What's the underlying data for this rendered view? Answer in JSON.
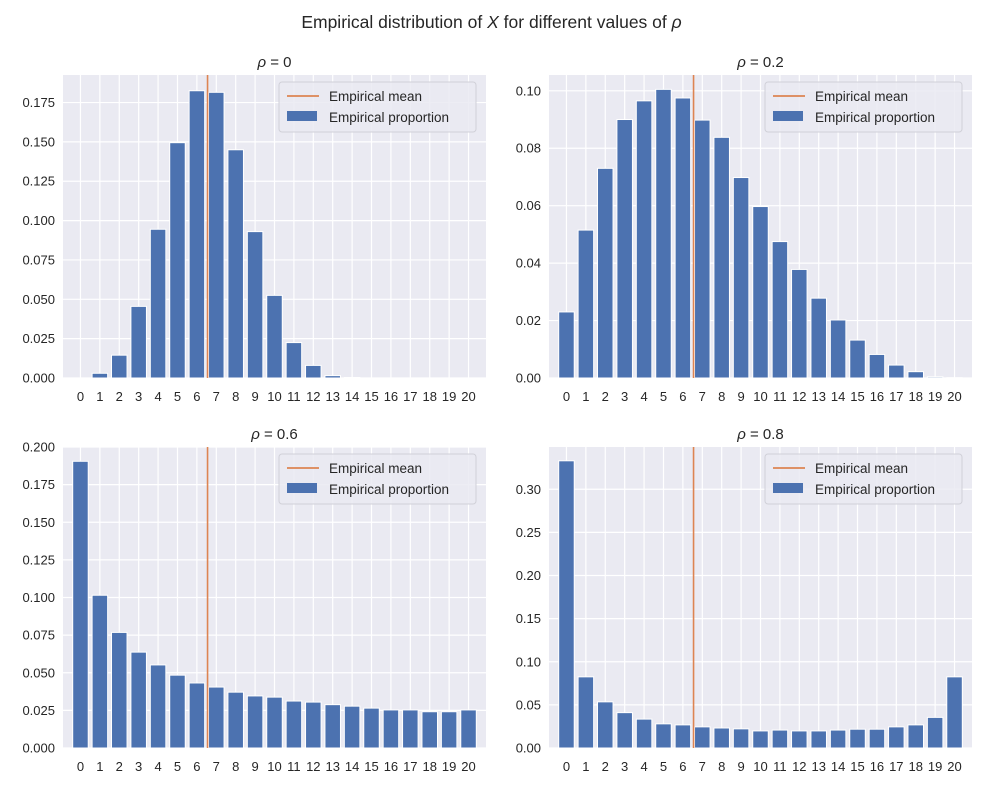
{
  "figure": {
    "title_prefix": "Empirical distribution of ",
    "title_var": "X",
    "title_middle": " for different values of ",
    "title_greek": "ρ"
  },
  "colors": {
    "bar": "#4c72b0",
    "mean_line": "#dd8452",
    "axes_bg": "#eaeaf2",
    "grid": "#ffffff"
  },
  "chart_data": [
    {
      "type": "bar",
      "title": "ρ = 0",
      "title_greek": "ρ",
      "title_value": "= 0",
      "xlabel": "",
      "ylabel": "",
      "categories": [
        "0",
        "1",
        "2",
        "3",
        "4",
        "5",
        "6",
        "7",
        "8",
        "9",
        "10",
        "11",
        "12",
        "13",
        "14",
        "15",
        "16",
        "17",
        "18",
        "19",
        "20"
      ],
      "values": [
        0.0,
        0.003,
        0.0145,
        0.0455,
        0.0945,
        0.1495,
        0.1825,
        0.1815,
        0.145,
        0.093,
        0.0525,
        0.0225,
        0.008,
        0.0015,
        0.0003,
        0.0,
        0.0,
        0.0,
        0.0,
        0.0,
        0.0
      ],
      "mean": 6.55,
      "ylim": [
        0,
        0.1925
      ],
      "yticks": [
        "0.000",
        "0.025",
        "0.050",
        "0.075",
        "0.100",
        "0.125",
        "0.150",
        "0.175"
      ],
      "ytick_values": [
        0,
        0.025,
        0.05,
        0.075,
        0.1,
        0.125,
        0.15,
        0.175
      ],
      "grid": true,
      "legend": {
        "placement": "top-right",
        "entries": [
          "Empirical mean",
          "Empirical proportion"
        ]
      }
    },
    {
      "type": "bar",
      "title": "ρ = 0.2",
      "title_greek": "ρ",
      "title_value": "= 0.2",
      "xlabel": "",
      "ylabel": "",
      "categories": [
        "0",
        "1",
        "2",
        "3",
        "4",
        "5",
        "6",
        "7",
        "8",
        "9",
        "10",
        "11",
        "12",
        "13",
        "14",
        "15",
        "16",
        "17",
        "18",
        "19",
        "20"
      ],
      "values": [
        0.023,
        0.0515,
        0.073,
        0.09,
        0.0965,
        0.1005,
        0.0975,
        0.0898,
        0.0838,
        0.0698,
        0.0597,
        0.0475,
        0.0378,
        0.0278,
        0.0202,
        0.0132,
        0.0082,
        0.0045,
        0.0022,
        0.0004,
        0.0001
      ],
      "mean": 6.55,
      "ylim": [
        0,
        0.1055
      ],
      "yticks": [
        "0.00",
        "0.02",
        "0.04",
        "0.06",
        "0.08",
        "0.10"
      ],
      "ytick_values": [
        0,
        0.02,
        0.04,
        0.06,
        0.08,
        0.1
      ],
      "grid": true,
      "legend": {
        "placement": "top-right",
        "entries": [
          "Empirical mean",
          "Empirical proportion"
        ]
      }
    },
    {
      "type": "bar",
      "title": "ρ = 0.6",
      "title_greek": "ρ",
      "title_value": "= 0.6",
      "xlabel": "",
      "ylabel": "",
      "categories": [
        "0",
        "1",
        "2",
        "3",
        "4",
        "5",
        "6",
        "7",
        "8",
        "9",
        "10",
        "11",
        "12",
        "13",
        "14",
        "15",
        "16",
        "17",
        "18",
        "19",
        "20"
      ],
      "values": [
        0.1905,
        0.1015,
        0.0768,
        0.0637,
        0.0552,
        0.0484,
        0.0432,
        0.0405,
        0.0371,
        0.0346,
        0.0338,
        0.0312,
        0.0305,
        0.0288,
        0.0278,
        0.0265,
        0.0253,
        0.0253,
        0.0241,
        0.0241,
        0.0253
      ],
      "mean": 6.55,
      "ylim": [
        0,
        0.2
      ],
      "yticks": [
        "0.000",
        "0.025",
        "0.050",
        "0.075",
        "0.100",
        "0.125",
        "0.150",
        "0.175",
        "0.200"
      ],
      "ytick_values": [
        0,
        0.025,
        0.05,
        0.075,
        0.1,
        0.125,
        0.15,
        0.175,
        0.2
      ],
      "grid": true,
      "legend": {
        "placement": "top-right",
        "entries": [
          "Empirical mean",
          "Empirical proportion"
        ]
      }
    },
    {
      "type": "bar",
      "title": "ρ = 0.8",
      "title_greek": "ρ",
      "title_value": "= 0.8",
      "xlabel": "",
      "ylabel": "",
      "categories": [
        "0",
        "1",
        "2",
        "3",
        "4",
        "5",
        "6",
        "7",
        "8",
        "9",
        "10",
        "11",
        "12",
        "13",
        "14",
        "15",
        "16",
        "17",
        "18",
        "19",
        "20"
      ],
      "values": [
        0.333,
        0.0825,
        0.0535,
        0.041,
        0.0335,
        0.028,
        0.0268,
        0.0245,
        0.0232,
        0.0222,
        0.0198,
        0.0208,
        0.0198,
        0.0198,
        0.0208,
        0.0218,
        0.0218,
        0.0245,
        0.0268,
        0.0355,
        0.0825
      ],
      "mean": 6.55,
      "ylim": [
        0,
        0.349
      ],
      "yticks": [
        "0.00",
        "0.05",
        "0.10",
        "0.15",
        "0.20",
        "0.25",
        "0.30"
      ],
      "ytick_values": [
        0,
        0.05,
        0.1,
        0.15,
        0.2,
        0.25,
        0.3
      ],
      "grid": true,
      "legend": {
        "placement": "top-right",
        "entries": [
          "Empirical mean",
          "Empirical proportion"
        ]
      }
    }
  ]
}
